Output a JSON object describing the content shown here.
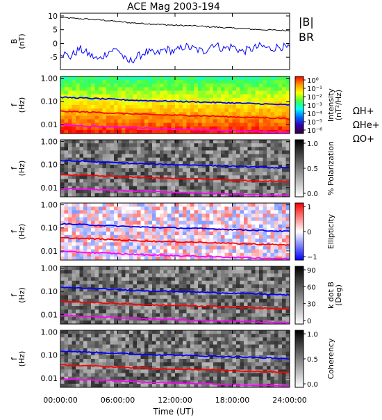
{
  "chart_data": {
    "title": "ACE Mag 2003-194",
    "xlabel": "Time (UT)",
    "xticks": [
      "00:00:00",
      "06:00:00",
      "12:00:00",
      "18:00:00",
      "24:00:00"
    ],
    "xrange_hours": [
      0,
      24
    ],
    "panels": [
      {
        "type": "line",
        "ylabel": [
          "B",
          "(nT)"
        ],
        "yticks": [
          "10",
          "5",
          "0",
          "-5"
        ],
        "tick_values": [
          10,
          5,
          0,
          -5
        ],
        "ylim": [
          -9.5,
          11
        ],
        "legend": [
          "|B|",
          "BR"
        ],
        "legend_colors": [
          "#000000",
          "#0000ff"
        ],
        "series": [
          {
            "name": "|B|",
            "color": "#000000",
            "x": [
              0,
              1,
              2,
              3,
              4,
              5,
              6,
              7,
              8,
              9,
              10,
              11,
              12,
              13,
              14,
              15,
              16,
              17,
              18,
              19,
              20,
              21,
              22,
              23,
              24
            ],
            "y": [
              9.5,
              9.2,
              9,
              8.8,
              8.6,
              8.3,
              8,
              7.6,
              7.4,
              7.2,
              7,
              6.8,
              6.6,
              6.5,
              6.4,
              6.2,
              6,
              5.8,
              5.6,
              5.4,
              5.2,
              5,
              4.9,
              4.8,
              4.7
            ]
          },
          {
            "name": "BR",
            "color": "#0000ff",
            "x": [
              0,
              1,
              2,
              3,
              4,
              5,
              6,
              7,
              8,
              9,
              10,
              11,
              12,
              13,
              14,
              15,
              16,
              17,
              18,
              19,
              20,
              21,
              22,
              23,
              24
            ],
            "y": [
              -3,
              -5,
              -2,
              -4,
              -6,
              -3,
              -2,
              -7,
              -5,
              -3,
              -4,
              -2,
              -3,
              -1,
              -2,
              -3,
              0,
              -2,
              -1,
              -3,
              -2,
              -1,
              -2,
              -1,
              -2
            ]
          }
        ]
      },
      {
        "type": "heatmap",
        "ylabel": [
          "f",
          "(Hz)"
        ],
        "yticks": [
          "1.00",
          "0.10",
          "0.01"
        ],
        "tick_values": [
          1,
          0.1,
          0.01
        ],
        "ylim": [
          0.004,
          1.2
        ],
        "colorbar": {
          "ticks": [
            "10⁰",
            "10⁻¹",
            "10⁻²",
            "10⁻³",
            "10⁻⁴",
            "10⁻⁵",
            "10⁻⁶"
          ],
          "label": [
            "Intensity",
            "(nT²/Hz)"
          ],
          "scale": "rainbow"
        }
      },
      {
        "type": "heatmap",
        "ylabel": [
          "f",
          "(Hz)"
        ],
        "yticks": [
          "1.00",
          "0.10",
          "0.01"
        ],
        "tick_values": [
          1,
          0.1,
          0.01
        ],
        "ylim": [
          0.004,
          1.2
        ],
        "colorbar": {
          "ticks": [
            "1.0",
            "0.5",
            "0.0"
          ],
          "label": [
            "% Polarization"
          ],
          "scale": "gray"
        }
      },
      {
        "type": "heatmap",
        "ylabel": [
          "f",
          "(Hz)"
        ],
        "yticks": [
          "1.00",
          "0.10",
          "0.01"
        ],
        "tick_values": [
          1,
          0.1,
          0.01
        ],
        "ylim": [
          0.004,
          1.2
        ],
        "colorbar": {
          "ticks": [
            "1",
            "0",
            "−1"
          ],
          "label": [
            "Ellipticity"
          ],
          "scale": "bwr"
        }
      },
      {
        "type": "heatmap",
        "ylabel": [
          "f",
          "(Hz)"
        ],
        "yticks": [
          "1.00",
          "0.10",
          "0.01"
        ],
        "tick_values": [
          1,
          0.1,
          0.01
        ],
        "ylim": [
          0.004,
          1.2
        ],
        "colorbar": {
          "ticks": [
            "90",
            "60",
            "30",
            "0"
          ],
          "label": [
            "k dot B",
            "(Deg)"
          ],
          "scale": "gray"
        }
      },
      {
        "type": "heatmap",
        "ylabel": [
          "f",
          "(Hz)"
        ],
        "yticks": [
          "1.00",
          "0.10",
          "0.01"
        ],
        "tick_values": [
          1,
          0.1,
          0.01
        ],
        "ylim": [
          0.004,
          1.2
        ],
        "colorbar": {
          "ticks": [
            "1.0",
            "0.5",
            "0.0"
          ],
          "label": [
            "Coherency"
          ],
          "scale": "gray"
        }
      }
    ],
    "gyrofrequency_legend": [
      {
        "label": "ΩH+",
        "color": "#0000ff"
      },
      {
        "label": "ΩHe+",
        "color": "#ff0000"
      },
      {
        "label": "ΩO+",
        "color": "#ff00ff"
      }
    ],
    "gyrofrequency_curves": [
      {
        "name": "ΩH+",
        "color": "#0000ff",
        "x": [
          0,
          2,
          4,
          6,
          8,
          10,
          12,
          14,
          16,
          18,
          20,
          22,
          24
        ],
        "y": [
          0.15,
          0.14,
          0.13,
          0.12,
          0.11,
          0.105,
          0.1,
          0.095,
          0.09,
          0.085,
          0.08,
          0.075,
          0.07
        ]
      },
      {
        "name": "ΩHe+",
        "color": "#ff0000",
        "x": [
          0,
          2,
          4,
          6,
          8,
          10,
          12,
          14,
          16,
          18,
          20,
          22,
          24
        ],
        "y": [
          0.037,
          0.035,
          0.033,
          0.03,
          0.028,
          0.026,
          0.025,
          0.024,
          0.023,
          0.021,
          0.02,
          0.019,
          0.018
        ]
      },
      {
        "name": "ΩO+",
        "color": "#ff00ff",
        "x": [
          0,
          2,
          4,
          6,
          8,
          10,
          12,
          14,
          16,
          18,
          20,
          22,
          24
        ],
        "y": [
          0.0094,
          0.0088,
          0.0082,
          0.0076,
          0.007,
          0.0066,
          0.0062,
          0.0059,
          0.0056,
          0.0053,
          0.005,
          0.0047,
          0.0045
        ]
      }
    ]
  }
}
